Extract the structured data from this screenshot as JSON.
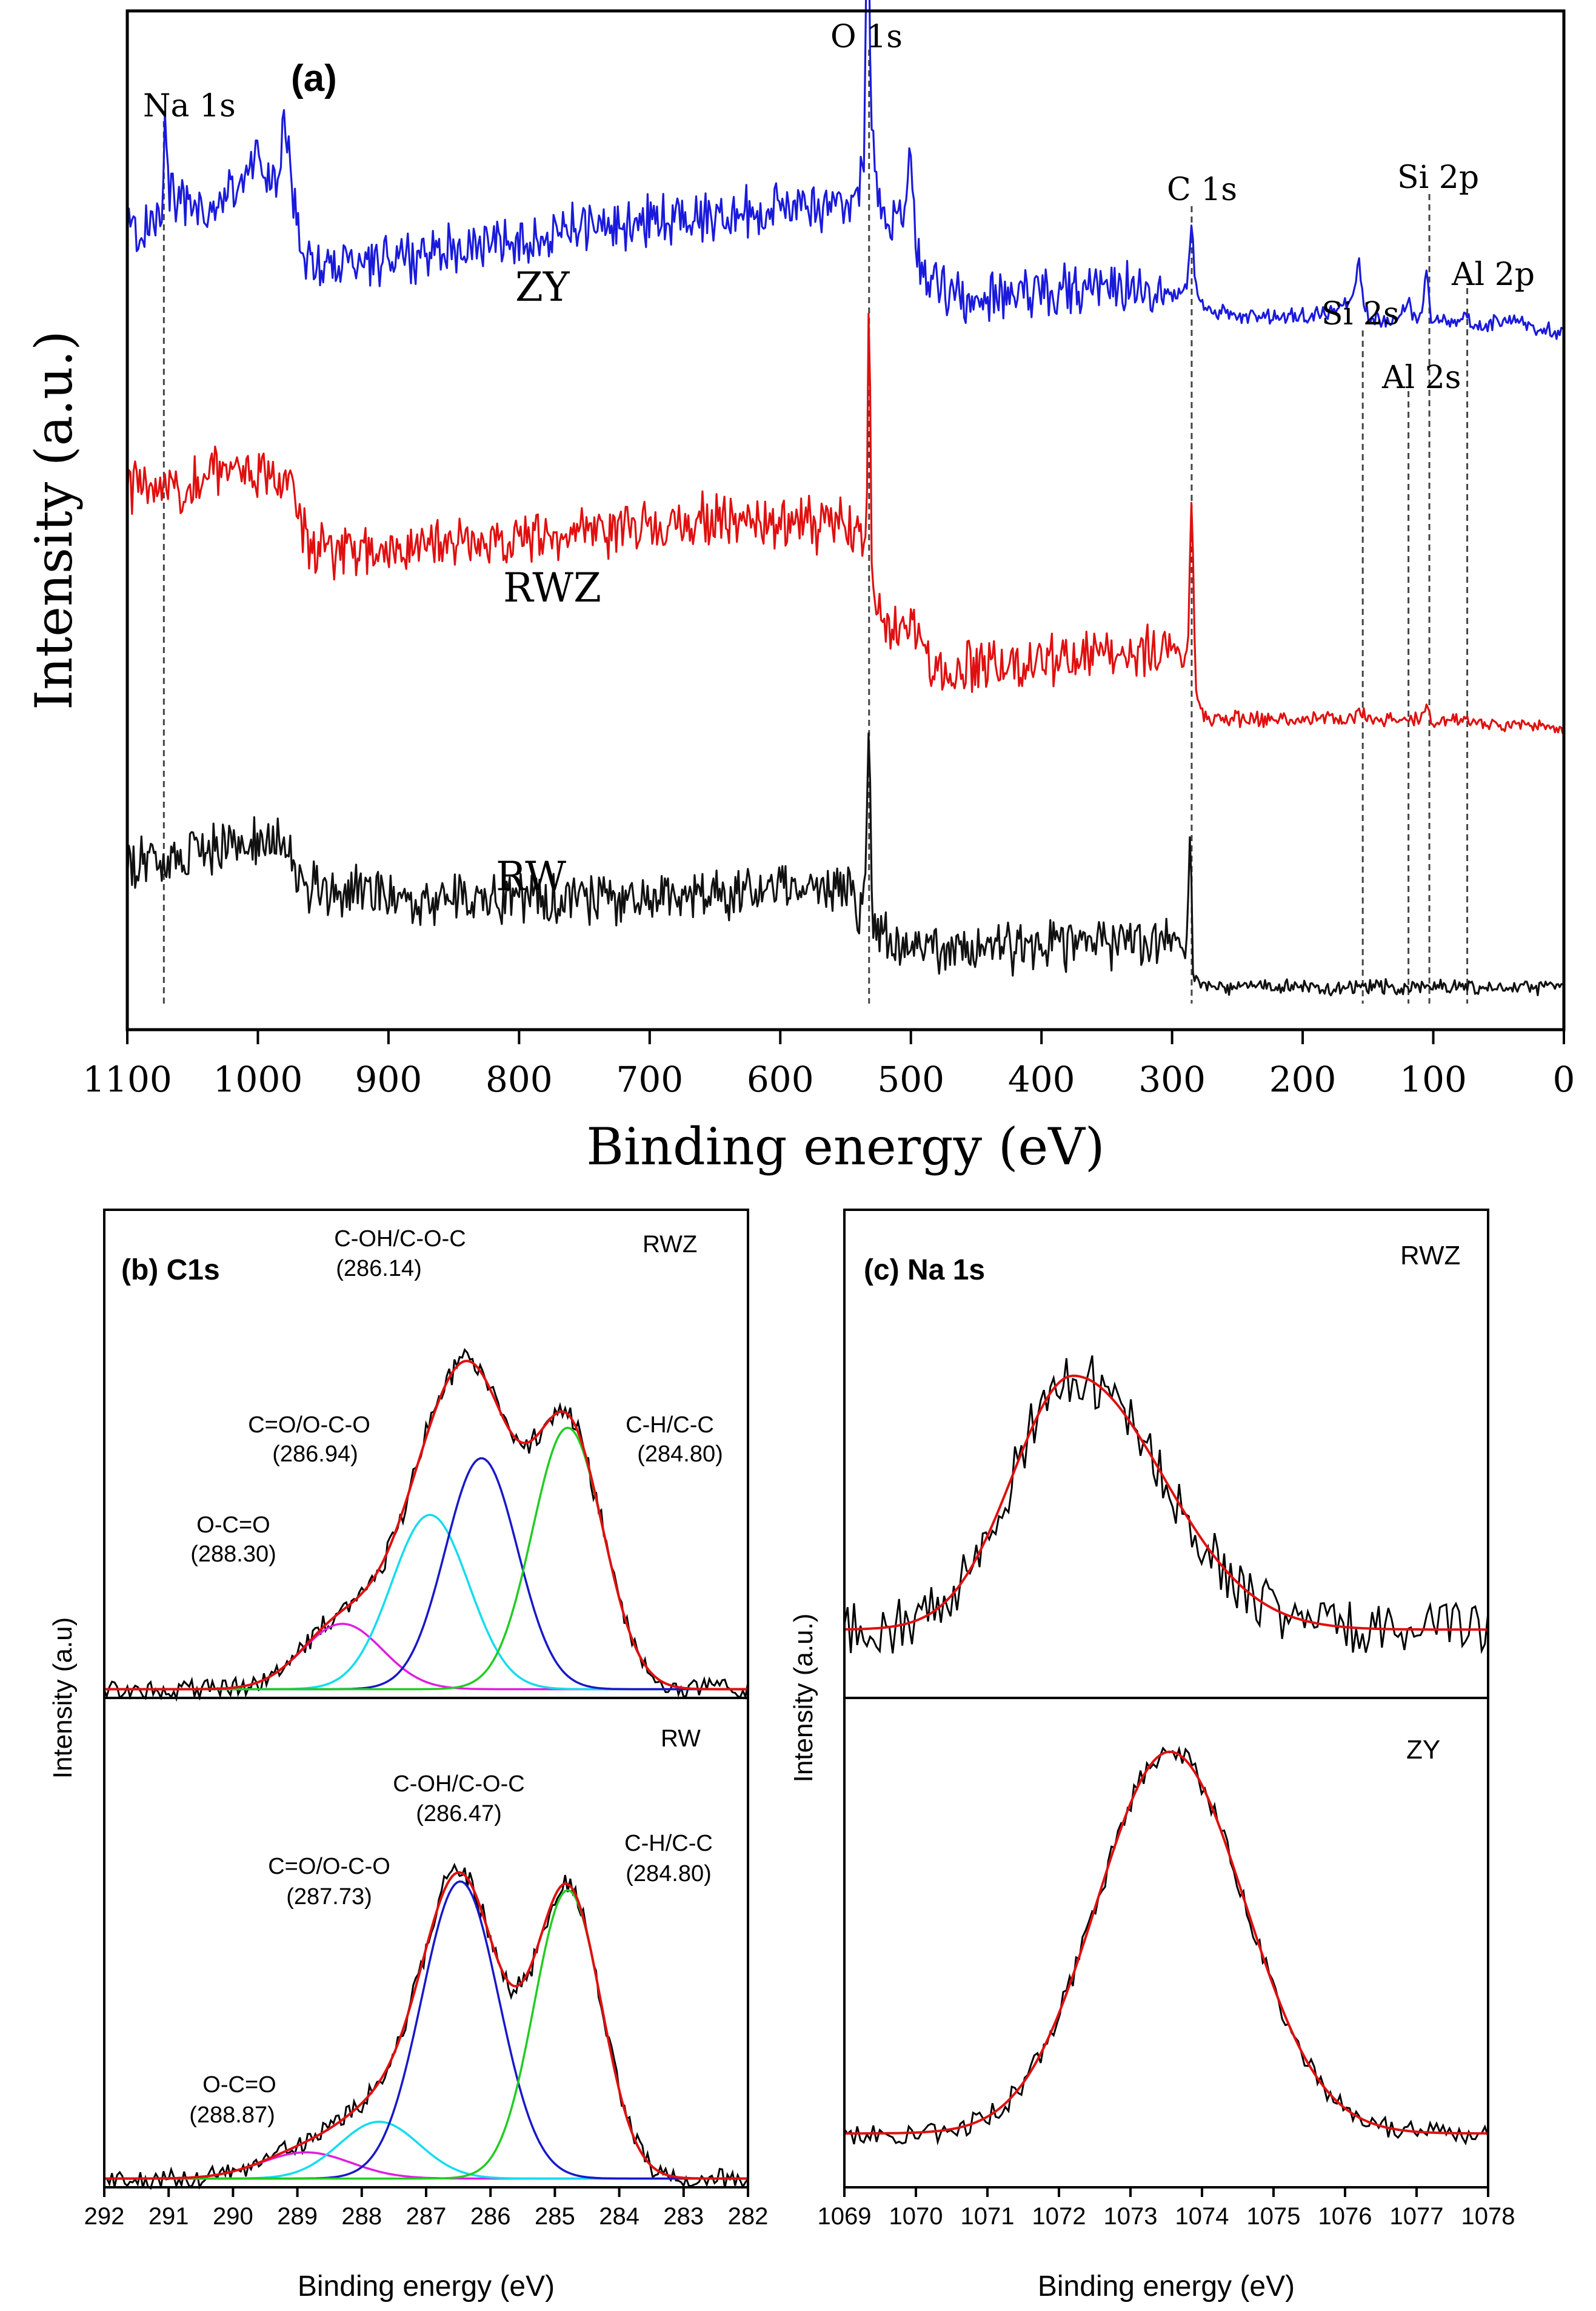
{
  "chart_data": [
    {
      "type": "line",
      "panel": "(a)",
      "title": "(a)",
      "xlabel": "Binding energy (eV)",
      "ylabel": "Intensity (a.u.)",
      "xlim": [
        1100,
        0
      ],
      "x_reversed": true,
      "xticks": [
        1100,
        1000,
        900,
        800,
        700,
        600,
        500,
        400,
        300,
        200,
        100,
        0
      ],
      "xtick_labels": [
        "1100",
        "1000",
        "900",
        "800",
        "700",
        "600",
        "500",
        "400",
        "300",
        "200",
        "100",
        "0"
      ],
      "ylim": [
        0,
        10
      ],
      "series": [
        {
          "name": "ZY",
          "color": "#1a1adc",
          "x": [
            1100,
            1090,
            1080,
            1073,
            1071,
            1069,
            1060,
            1040,
            1020,
            1005,
            1000,
            995,
            985,
            982,
            980,
            975,
            970,
            965,
            950,
            920,
            880,
            840,
            800,
            760,
            720,
            680,
            640,
            600,
            580,
            560,
            550,
            545,
            540,
            536,
            533,
            530,
            526,
            520,
            510,
            505,
            500,
            497,
            494,
            490,
            480,
            460,
            420,
            380,
            340,
            310,
            300,
            292,
            288,
            285,
            282,
            278,
            270,
            240,
            200,
            180,
            165,
            160,
            157,
            154,
            150,
            140,
            130,
            122,
            119,
            116,
            112,
            108,
            105,
            102,
            98,
            90,
            80,
            74,
            70,
            60,
            40,
            20,
            10,
            0
          ],
          "y": [
            7.9,
            7.8,
            7.95,
            8.2,
            9.2,
            8.3,
            8.1,
            8.0,
            8.25,
            8.45,
            8.7,
            8.4,
            8.2,
            8.7,
            9.1,
            8.4,
            7.95,
            7.55,
            7.5,
            7.55,
            7.6,
            7.7,
            7.75,
            7.85,
            7.9,
            7.95,
            8.0,
            8.05,
            8.1,
            8.1,
            8.05,
            8.15,
            8.25,
            8.6,
            11.4,
            8.8,
            8.3,
            7.9,
            7.9,
            8.1,
            8.6,
            7.8,
            7.55,
            7.45,
            7.3,
            7.2,
            7.25,
            7.25,
            7.3,
            7.3,
            7.2,
            7.2,
            7.4,
            7.95,
            7.3,
            7.15,
            7.05,
            7.0,
            7.0,
            7.05,
            7.15,
            7.25,
            7.55,
            7.2,
            7.0,
            6.95,
            7.0,
            7.05,
            7.2,
            7.05,
            6.95,
            7.05,
            7.5,
            7.0,
            6.95,
            6.95,
            6.95,
            7.05,
            6.9,
            6.9,
            7.0,
            6.88,
            6.85,
            6.82
          ]
        },
        {
          "name": "RWZ",
          "color": "#e01010",
          "x": [
            1100,
            1085,
            1075,
            1072,
            1070,
            1060,
            1040,
            1020,
            1000,
            980,
            975,
            970,
            965,
            960,
            940,
            900,
            860,
            820,
            780,
            740,
            700,
            660,
            620,
            590,
            570,
            555,
            548,
            542,
            538,
            534,
            532,
            530,
            528,
            524,
            518,
            510,
            505,
            500,
            497,
            494,
            490,
            480,
            440,
            400,
            360,
            330,
            310,
            300,
            295,
            291,
            288,
            285,
            282,
            279,
            276,
            270,
            250,
            200,
            180,
            160,
            156,
            153,
            150,
            130,
            110,
            108,
            105,
            102,
            98,
            80,
            60,
            40,
            20,
            10,
            0
          ],
          "y": [
            5.3,
            5.35,
            5.2,
            5.65,
            5.4,
            5.3,
            5.45,
            5.55,
            5.45,
            5.35,
            5.3,
            5.1,
            4.85,
            4.75,
            4.7,
            4.7,
            4.75,
            4.8,
            4.85,
            4.9,
            4.95,
            5.0,
            4.95,
            5.0,
            4.95,
            5.0,
            4.95,
            4.85,
            4.75,
            4.7,
            7.5,
            4.8,
            4.4,
            4.1,
            3.95,
            3.95,
            4.0,
            4.15,
            4.05,
            3.8,
            3.65,
            3.55,
            3.6,
            3.6,
            3.65,
            3.7,
            3.75,
            3.8,
            3.7,
            3.55,
            3.7,
            5.3,
            3.4,
            3.2,
            3.1,
            3.05,
            3.05,
            3.05,
            3.05,
            3.05,
            3.1,
            3.15,
            3.05,
            3.05,
            3.05,
            3.1,
            3.2,
            3.05,
            3.0,
            3.05,
            3.0,
            3.0,
            3.0,
            2.95,
            2.95
          ]
        },
        {
          "name": "RW",
          "color": "#111111",
          "x": [
            1100,
            1080,
            1060,
            1040,
            1020,
            1000,
            990,
            980,
            975,
            970,
            965,
            960,
            940,
            900,
            860,
            820,
            780,
            740,
            700,
            660,
            620,
            590,
            570,
            555,
            548,
            542,
            538,
            535,
            532,
            530,
            528,
            524,
            518,
            510,
            500,
            480,
            440,
            400,
            360,
            330,
            310,
            300,
            295,
            291,
            289,
            286,
            284,
            282,
            280,
            278,
            274,
            260,
            220,
            180,
            140,
            100,
            60,
            20,
            0
          ],
          "y": [
            1.6,
            1.62,
            1.65,
            1.7,
            1.8,
            1.82,
            1.85,
            1.82,
            1.8,
            1.6,
            1.48,
            1.42,
            1.35,
            1.3,
            1.3,
            1.28,
            1.25,
            1.3,
            1.3,
            1.32,
            1.35,
            1.4,
            1.38,
            1.42,
            1.38,
            1.2,
            1.1,
            1.5,
            3.15,
            1.25,
            1.0,
            0.9,
            0.85,
            0.8,
            0.8,
            0.8,
            0.8,
            0.82,
            0.85,
            0.9,
            0.92,
            0.95,
            0.85,
            0.7,
            0.8,
            2.05,
            0.55,
            0.48,
            0.46,
            0.44,
            0.42,
            0.42,
            0.42,
            0.42,
            0.42,
            0.42,
            0.42,
            0.42,
            0.42
          ]
        }
      ],
      "series_labels": [
        "ZY",
        "RWZ",
        "RW"
      ],
      "peak_markers": [
        {
          "label": "Na 1s",
          "x": 1072
        },
        {
          "label": "O 1s",
          "x": 532
        },
        {
          "label": "C 1s",
          "x": 285
        },
        {
          "label": "Si 2s",
          "x": 154
        },
        {
          "label": "Al 2s",
          "x": 119
        },
        {
          "label": "Si 2p",
          "x": 103
        },
        {
          "label": "Al 2p",
          "x": 74
        }
      ]
    },
    {
      "type": "line",
      "panel": "(b) C1s",
      "title": "(b) C1s",
      "xlabel": "Binding energy (eV)",
      "ylabel": "Intensity (a.u)",
      "xlim": [
        292,
        282
      ],
      "x_reversed": true,
      "xticks": [
        292,
        291,
        290,
        289,
        288,
        287,
        286,
        285,
        284,
        283,
        282
      ],
      "xtick_labels": [
        "292",
        "291",
        "290",
        "289",
        "288",
        "287",
        "286",
        "285",
        "284",
        "283",
        "282"
      ],
      "subplots": [
        {
          "name": "RWZ",
          "ylim": [
            0,
            1.12
          ],
          "baseline": 0.02,
          "components": [
            {
              "label": "O-C=O",
              "position_label": "(288.30)",
              "center": 288.3,
              "amplitude": 0.15,
              "sigma": 0.62,
              "color": "#e01ee0"
            },
            {
              "label": "C=O/O-C-O",
              "position_label": "(286.94)",
              "center": 286.94,
              "amplitude": 0.4,
              "sigma": 0.6,
              "color": "#12dcef"
            },
            {
              "label": "C-OH/C-O-C",
              "position_label": "(286.14)",
              "center": 286.14,
              "amplitude": 0.53,
              "sigma": 0.56,
              "color": "#1818c8"
            },
            {
              "label": "C-H/C-C",
              "position_label": "(284.80)",
              "center": 284.8,
              "amplitude": 0.6,
              "sigma": 0.55,
              "color": "#22cc22"
            }
          ]
        },
        {
          "name": "RW",
          "ylim": [
            0,
            1.12
          ],
          "baseline": 0.02,
          "components": [
            {
              "label": "O-C=O",
              "position_label": "(288.87)",
              "center": 288.87,
              "amplitude": 0.06,
              "sigma": 0.7,
              "color": "#e01ee0"
            },
            {
              "label": "C=O/O-C-O",
              "position_label": "(287.73)",
              "center": 287.73,
              "amplitude": 0.13,
              "sigma": 0.62,
              "color": "#12dcef"
            },
            {
              "label": "C-OH/C-O-C",
              "position_label": "(286.47)",
              "center": 286.47,
              "amplitude": 0.68,
              "sigma": 0.6,
              "color": "#1818c8"
            },
            {
              "label": "C-H/C-C",
              "position_label": "(284.80)",
              "center": 284.8,
              "amplitude": 0.66,
              "sigma": 0.52,
              "color": "#22cc22"
            }
          ]
        }
      ]
    },
    {
      "type": "line",
      "panel": "(c) Na 1s",
      "title": "(c) Na 1s",
      "xlabel": "Binding energy (eV)",
      "ylabel": "Intensity (a.u.)",
      "xlim": [
        1069,
        1078
      ],
      "xticks": [
        1069,
        1070,
        1071,
        1072,
        1073,
        1074,
        1075,
        1076,
        1077,
        1078
      ],
      "xtick_labels": [
        "1069",
        "1070",
        "1071",
        "1072",
        "1073",
        "1074",
        "1075",
        "1076",
        "1077",
        "1078"
      ],
      "subplots": [
        {
          "name": "RWZ",
          "ylim": [
            0,
            1.0
          ],
          "fit": {
            "center": 1072.2,
            "amplitude": 0.52,
            "sigma_low": 0.85,
            "sigma_high": 1.25,
            "baseline": 0.14
          }
        },
        {
          "name": "ZY",
          "ylim": [
            0,
            1.0
          ],
          "fit": {
            "center": 1073.55,
            "amplitude": 0.78,
            "sigma_low": 1.02,
            "sigma_high": 1.05,
            "baseline": 0.11
          }
        }
      ]
    }
  ]
}
